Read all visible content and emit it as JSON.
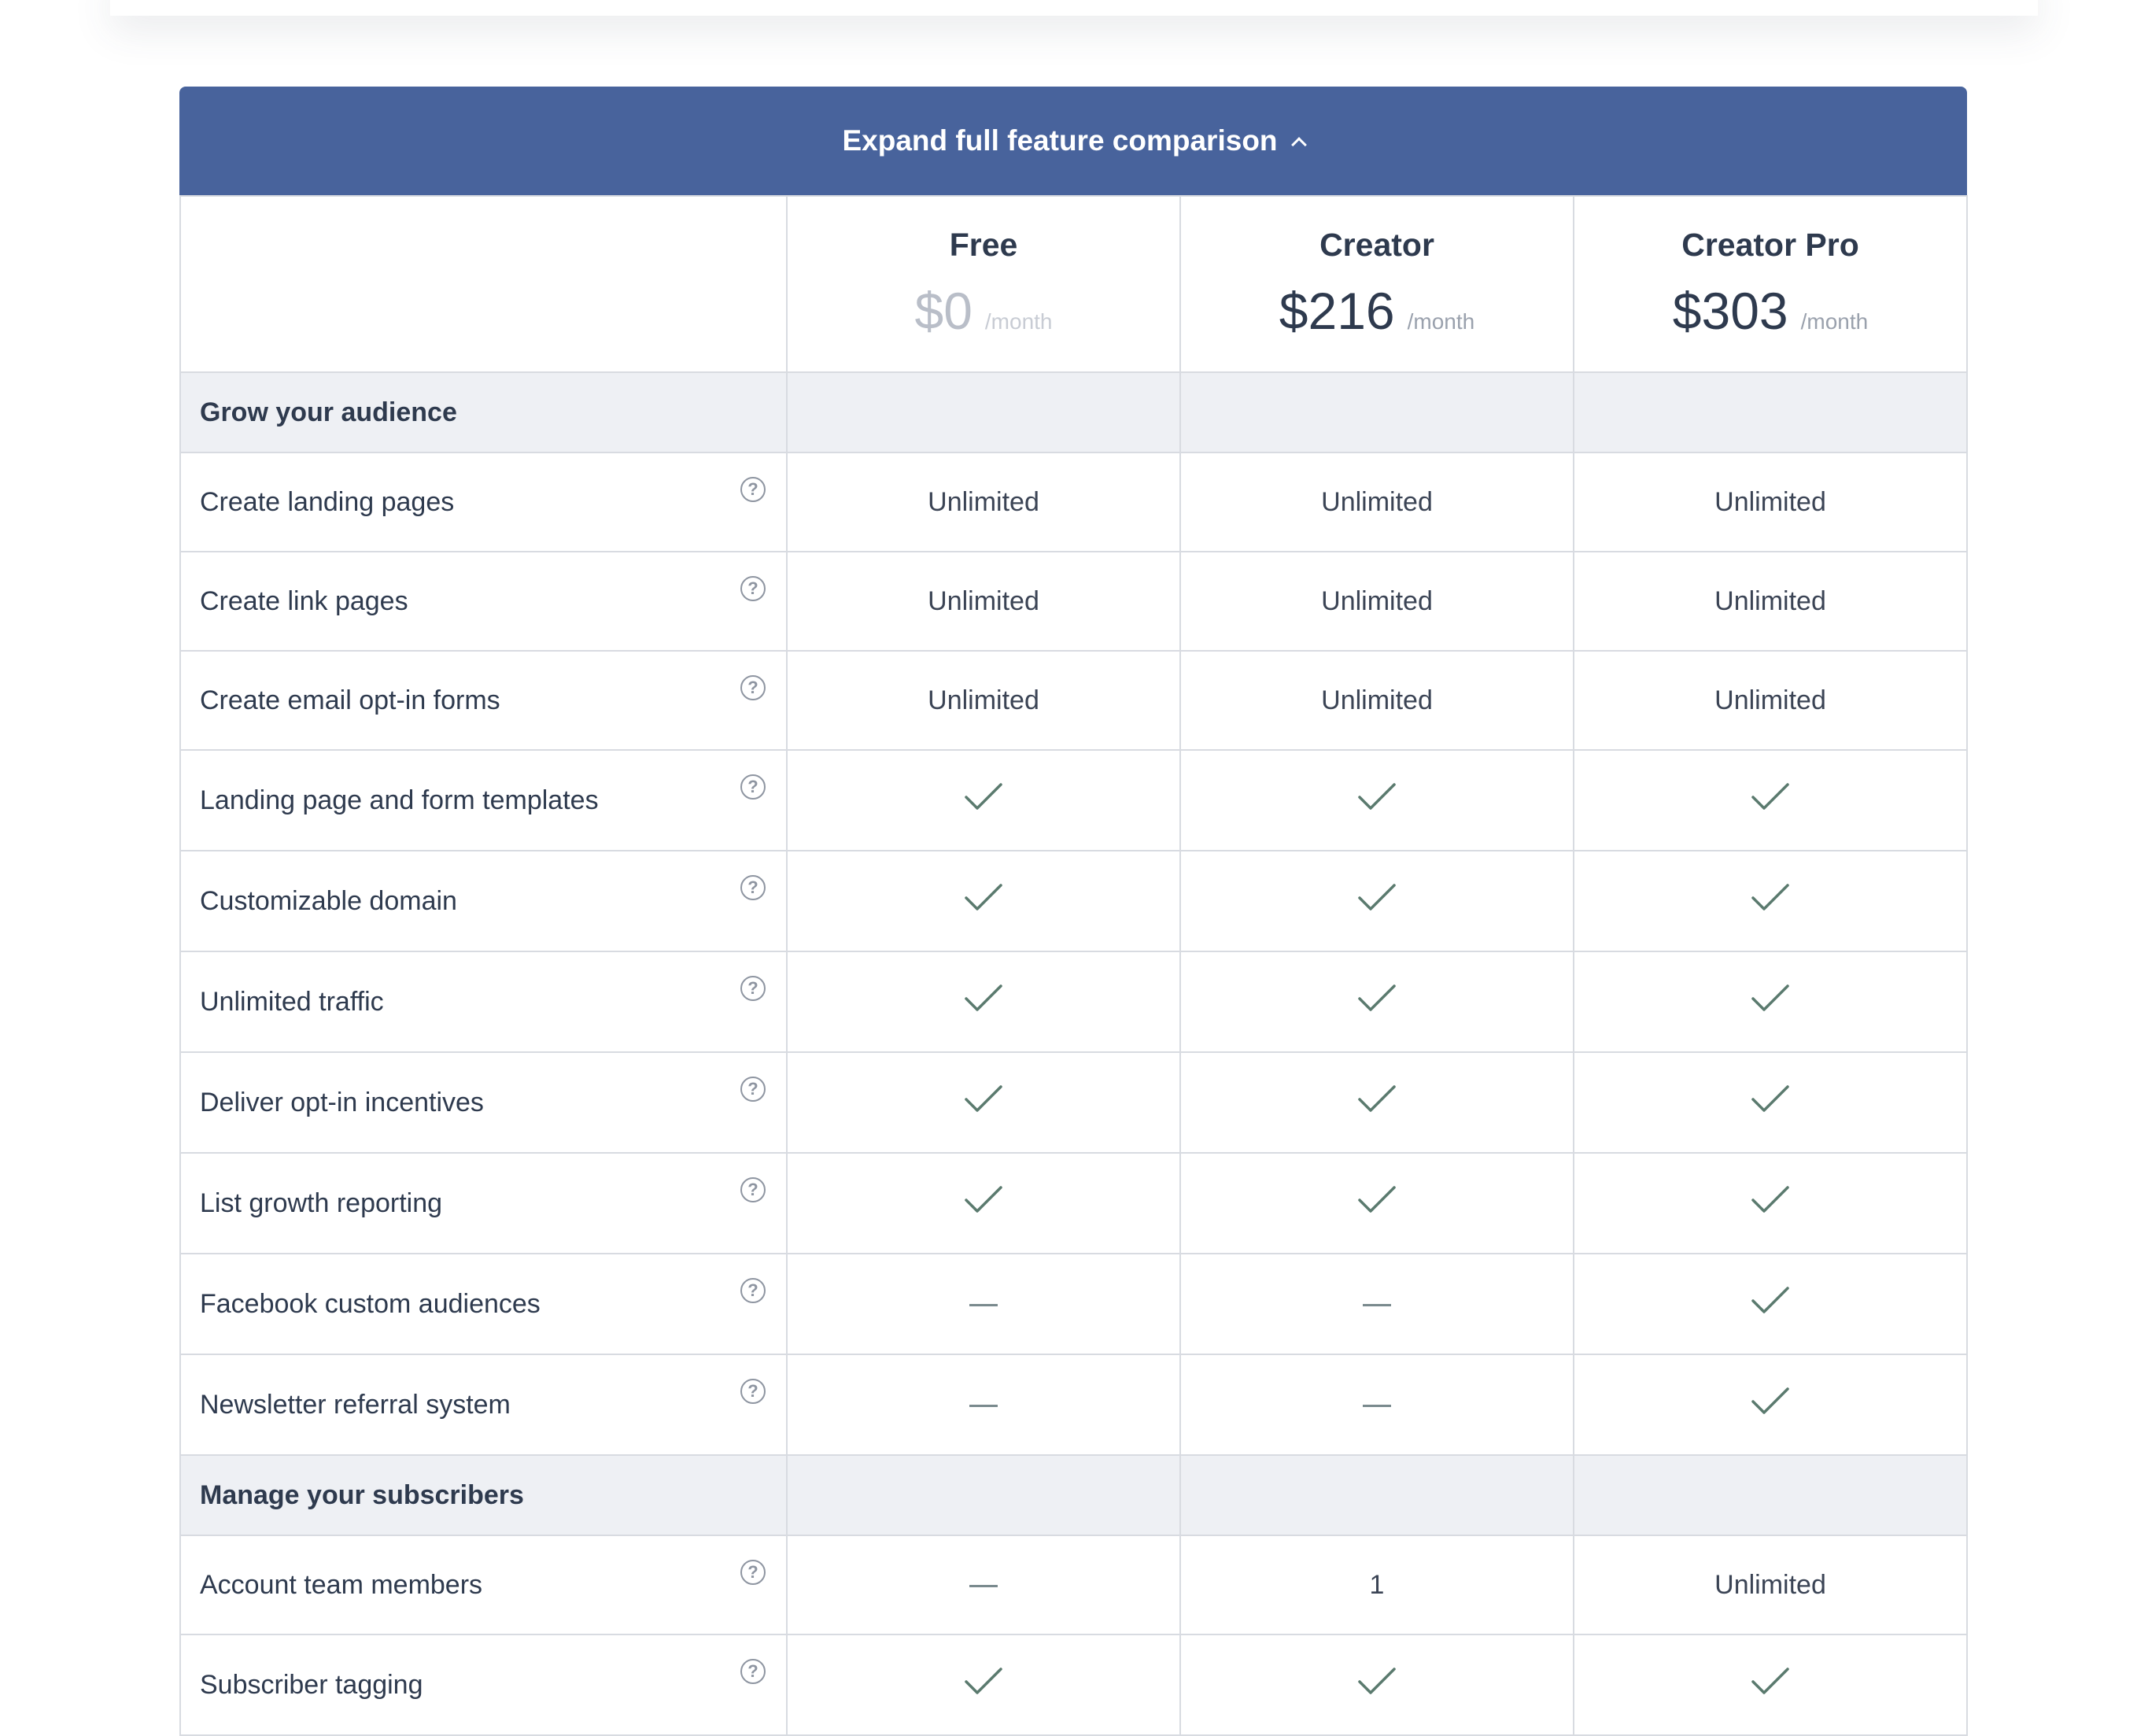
{
  "expand_label": "Expand full feature comparison",
  "plans": [
    {
      "name": "Free",
      "price": "$0",
      "period": "/month",
      "muted": true
    },
    {
      "name": "Creator",
      "price": "$216",
      "period": "/month",
      "muted": false
    },
    {
      "name": "Creator Pro",
      "price": "$303",
      "period": "/month",
      "muted": false
    }
  ],
  "sections": [
    {
      "title": "Grow your audience",
      "rows": [
        {
          "label": "Create landing pages",
          "values": [
            "Unlimited",
            "Unlimited",
            "Unlimited"
          ]
        },
        {
          "label": "Create link pages",
          "values": [
            "Unlimited",
            "Unlimited",
            "Unlimited"
          ]
        },
        {
          "label": "Create email opt-in forms",
          "values": [
            "Unlimited",
            "Unlimited",
            "Unlimited"
          ]
        },
        {
          "label": "Landing page and form templates",
          "values": [
            "check",
            "check",
            "check"
          ]
        },
        {
          "label": "Customizable domain",
          "values": [
            "check",
            "check",
            "check"
          ]
        },
        {
          "label": "Unlimited traffic",
          "values": [
            "check",
            "check",
            "check"
          ]
        },
        {
          "label": "Deliver opt-in incentives",
          "values": [
            "check",
            "check",
            "check"
          ]
        },
        {
          "label": "List growth reporting",
          "values": [
            "check",
            "check",
            "check"
          ]
        },
        {
          "label": "Facebook custom audiences",
          "values": [
            "dash",
            "dash",
            "check"
          ]
        },
        {
          "label": "Newsletter referral system",
          "values": [
            "dash",
            "dash",
            "check"
          ]
        }
      ]
    },
    {
      "title": "Manage your subscribers",
      "rows": [
        {
          "label": "Account team members",
          "values": [
            "dash",
            "1",
            "Unlimited"
          ]
        },
        {
          "label": "Subscriber tagging",
          "values": [
            "check",
            "check",
            "check"
          ]
        }
      ]
    }
  ],
  "icons": {
    "help": "question-circle-icon",
    "check": "checkmark-icon",
    "dash": "dash-icon",
    "chevron": "chevron-up-icon"
  },
  "colors": {
    "bar": "#48639c",
    "check": "#5a7a6e",
    "section_bg": "#eef0f4"
  }
}
